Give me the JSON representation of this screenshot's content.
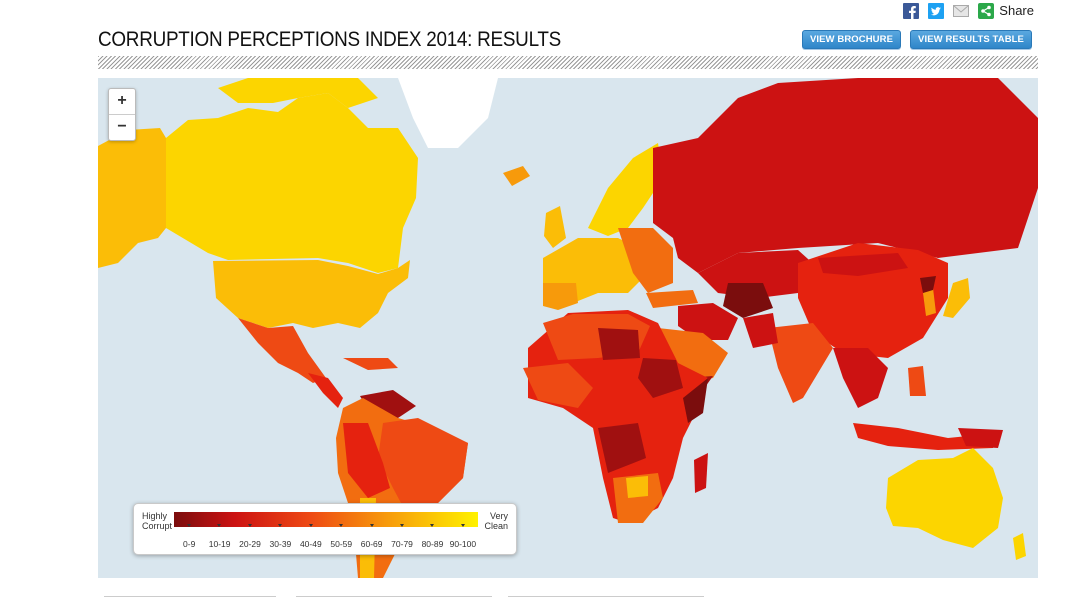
{
  "share": {
    "label": "Share",
    "icons": [
      "facebook-icon",
      "twitter-icon",
      "email-icon",
      "share-icon"
    ]
  },
  "title": "CORRUPTION PERCEPTIONS INDEX 2014: RESULTS",
  "buttons": {
    "brochure": "VIEW BROCHURE",
    "results_table": "VIEW RESULTS TABLE"
  },
  "zoom": {
    "in": "+",
    "out": "−"
  },
  "legend": {
    "low_line1": "Highly",
    "low_line2": "Corrupt",
    "high_line1": "Very",
    "high_line2": "Clean",
    "ranges": [
      "0-9",
      "10-19",
      "20-29",
      "30-39",
      "40-49",
      "50-59",
      "60-69",
      "70-79",
      "80-89",
      "90-100"
    ],
    "colors": [
      "#7b0d0d",
      "#a01010",
      "#cc1212",
      "#e5220f",
      "#ee4a14",
      "#f26d10",
      "#f79a0b",
      "#fbbd07",
      "#fcd500",
      "#fff200"
    ]
  },
  "colors": {
    "ocean": "#d9e6ee",
    "button": "#3a8fd0"
  }
}
